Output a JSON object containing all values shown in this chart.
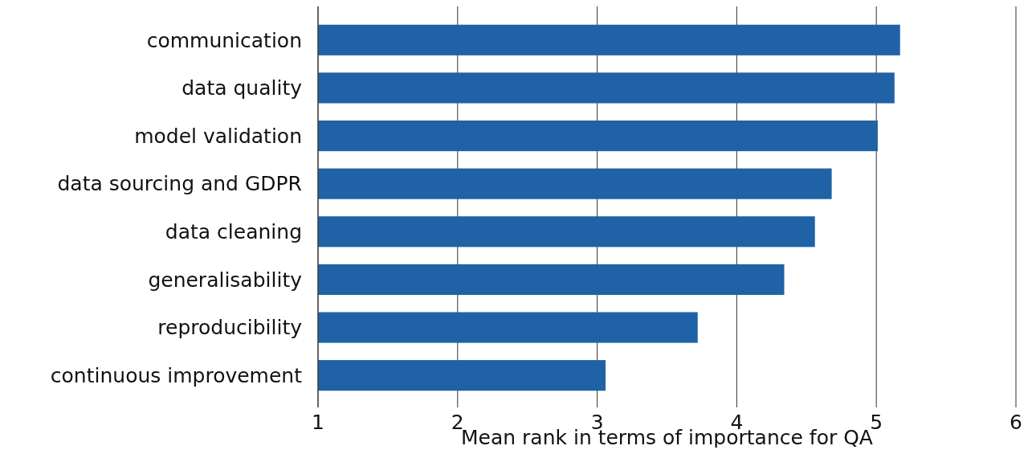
{
  "chart_data": {
    "type": "bar",
    "orientation": "horizontal",
    "xlabel": "Mean rank in terms of importance for QA",
    "categories": [
      "communication",
      "data quality",
      "model validation",
      "data sourcing and GDPR",
      "data cleaning",
      "generalisability",
      "reproducibility",
      "continuous improvement"
    ],
    "values": [
      5.17,
      5.13,
      5.01,
      4.68,
      4.56,
      4.34,
      3.72,
      3.06
    ],
    "color": "#1f62a5",
    "xlim": [
      1,
      6
    ],
    "xticks": [
      1,
      2,
      3,
      4,
      5,
      6
    ],
    "grid": "x"
  }
}
